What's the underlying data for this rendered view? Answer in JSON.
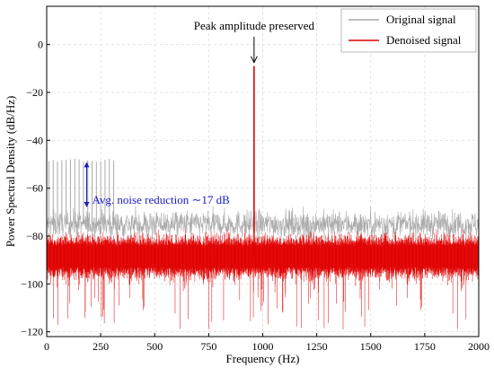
{
  "chart_data": {
    "type": "line",
    "xlabel": "Frequency (Hz)",
    "ylabel": "Power Spectral Density (dB/Hz)",
    "xlim": [
      0,
      2000
    ],
    "ylim": [
      -122,
      16
    ],
    "xticks": [
      "0",
      "250",
      "500",
      "750",
      "1000",
      "1250",
      "1500",
      "1750",
      "2000"
    ],
    "xtick_values": [
      0,
      250,
      500,
      750,
      1000,
      1250,
      1500,
      1750,
      2000
    ],
    "yticks": [
      "0",
      "−20",
      "−40",
      "−60",
      "−80",
      "−100",
      "−120"
    ],
    "ytick_values": [
      0,
      -20,
      -40,
      -60,
      -80,
      -100,
      -120
    ],
    "grid": true,
    "legend_position": "top-right",
    "series": [
      {
        "name": "Original signal",
        "color": "#aaaaaa",
        "noise_floor_db": -75,
        "noise_spread_db": 8,
        "low_freq_harmonics": {
          "x_range": [
            0,
            310
          ],
          "spacing_hz": 20,
          "top_db": -49
        },
        "peak": {
          "x": 960,
          "y": -9
        }
      },
      {
        "name": "Denoised signal",
        "color": "#e00000",
        "noise_floor_db": -88,
        "noise_spread_db": 8,
        "min_db": -119,
        "peak": {
          "x": 960,
          "y": -9
        }
      }
    ],
    "annotations": [
      {
        "text": "Peak amplitude preserved",
        "x": 960,
        "y": -3
      },
      {
        "text": "Avg. noise reduction ∼17 dB",
        "x": 210,
        "y": -65
      }
    ]
  }
}
